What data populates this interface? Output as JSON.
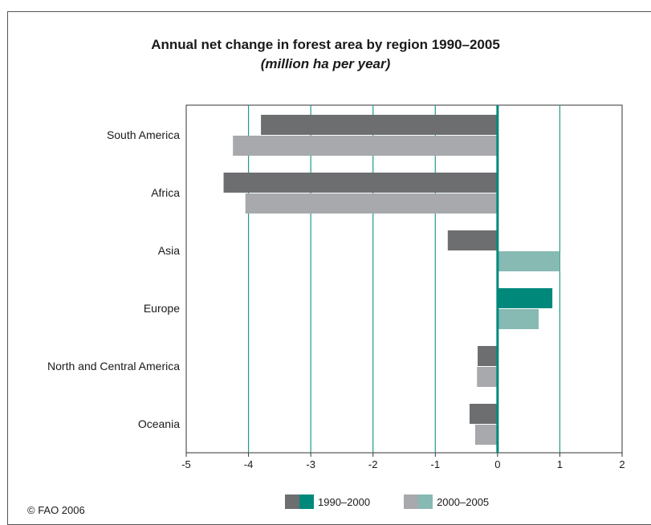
{
  "chart_data": {
    "type": "bar",
    "orientation": "horizontal",
    "title": "Annual net change in forest area by region 1990–2005",
    "subtitle": "(million ha per year)",
    "categories": [
      "South America",
      "Africa",
      "Asia",
      "Europe",
      "North and Central America",
      "Oceania"
    ],
    "series": [
      {
        "name": "1990–2000",
        "values": [
          -3.8,
          -4.4,
          -0.8,
          0.88,
          -0.32,
          -0.45
        ],
        "color_negative": "#6d6e70",
        "color_positive": "#00897b"
      },
      {
        "name": "2000–2005",
        "values": [
          -4.25,
          -4.05,
          1.0,
          0.66,
          -0.33,
          -0.36
        ],
        "color_negative": "#a7a9ac",
        "color_positive": "#86bab3"
      }
    ],
    "x_ticks": [
      -5,
      -4,
      -3,
      -2,
      -1,
      0,
      1,
      2
    ],
    "xlim": [
      -5,
      2
    ],
    "grid": "vertical",
    "grid_color": "#1f9a8a",
    "legend_position": "bottom"
  },
  "copyright": "© FAO 2006"
}
